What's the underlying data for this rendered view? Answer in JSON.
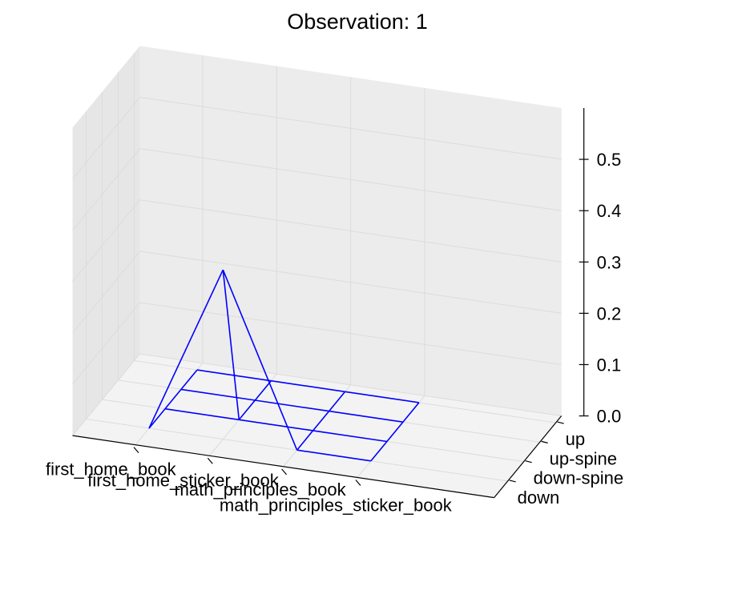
{
  "chart_data": {
    "type": "wireframe-3d",
    "title": "Observation: 1",
    "x_categories": [
      "first_home_book",
      "first_home_sticker_book",
      "math_principles_book",
      "math_principles_sticker_book"
    ],
    "y_categories": [
      "down",
      "down-spine",
      "up-spine",
      "up"
    ],
    "z_ticks": [
      "0.0",
      "0.1",
      "0.2",
      "0.3",
      "0.4",
      "0.5"
    ],
    "zlim": [
      0,
      0.5
    ],
    "grid": true,
    "series": [
      {
        "color": "#0000ff",
        "values": [
          [
            0,
            0.33,
            0,
            0
          ],
          [
            0,
            0,
            0,
            0
          ],
          [
            0,
            0,
            0,
            0
          ],
          [
            0,
            0,
            0,
            0
          ]
        ]
      }
    ]
  }
}
